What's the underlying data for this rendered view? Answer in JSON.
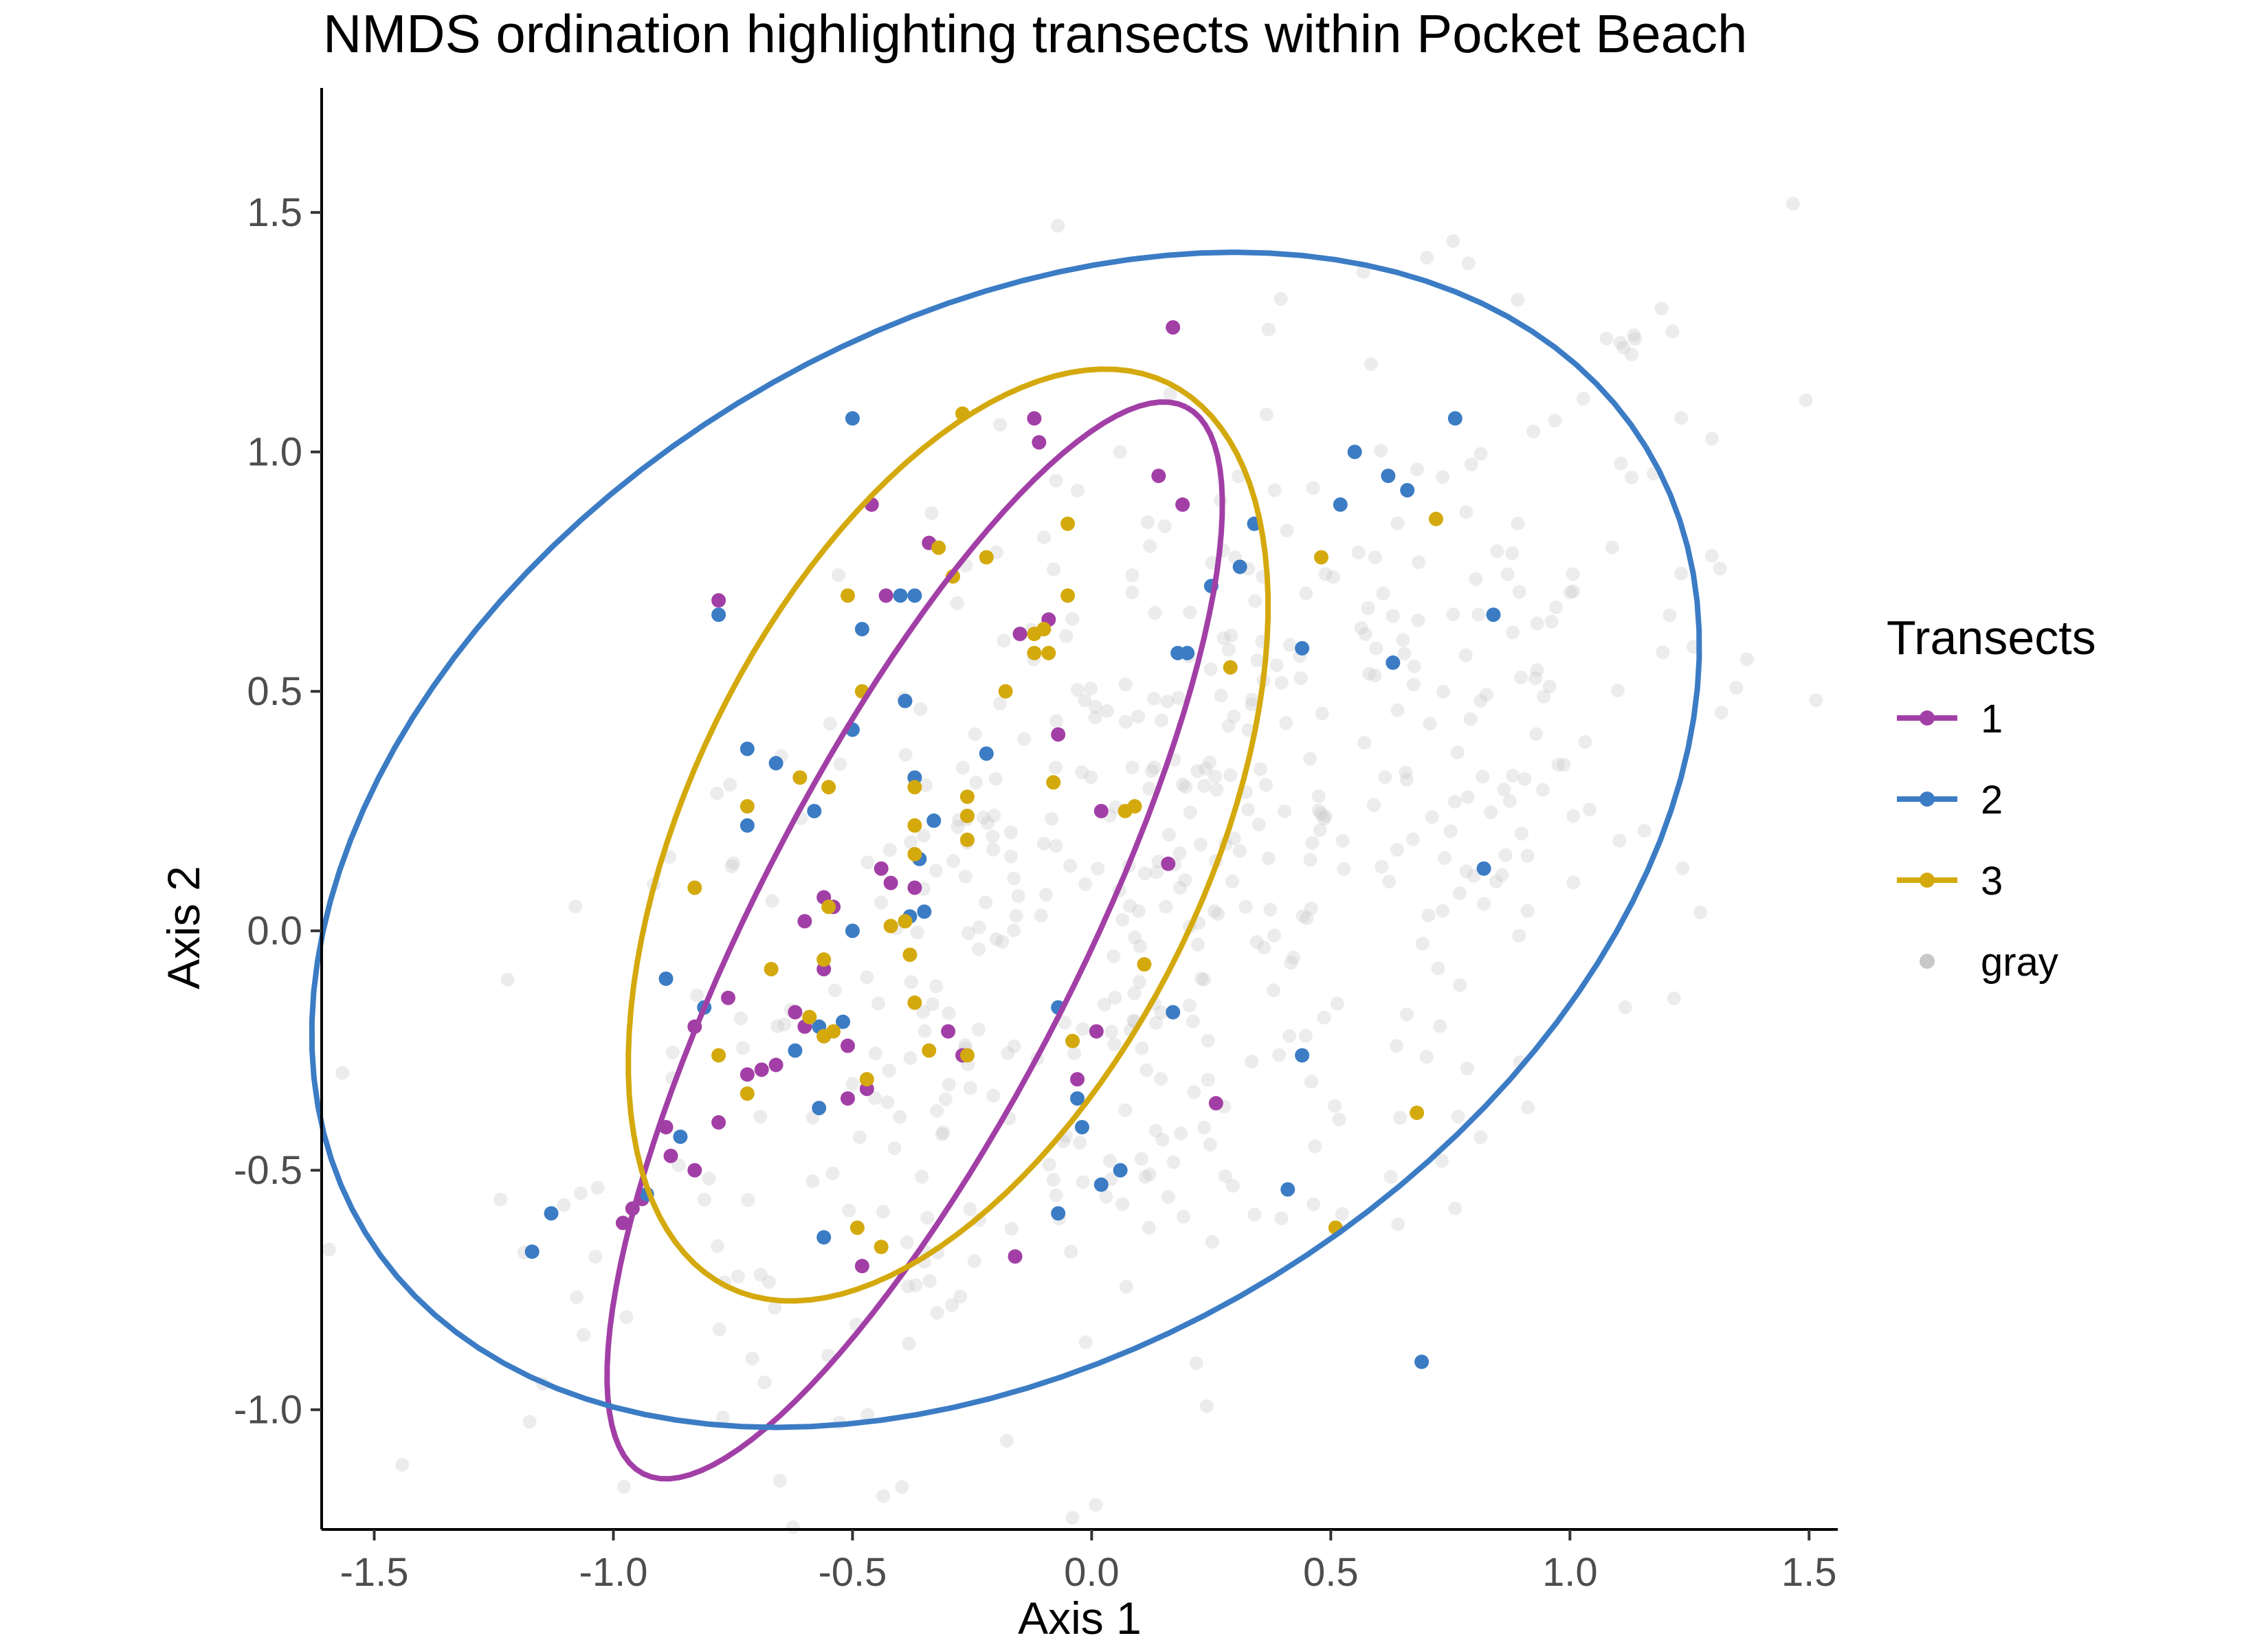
{
  "chart_data": {
    "type": "scatter",
    "title": "NMDS ordination highlighting transects within Pocket Beach",
    "xlabel": "Axis 1",
    "ylabel": "Axis 2",
    "xlim": [
      -1.61,
      1.56
    ],
    "ylim": [
      -1.25,
      1.76
    ],
    "xticks": [
      -1.5,
      -1.0,
      -0.5,
      0.0,
      0.5,
      1.0,
      1.5
    ],
    "xtick_labels": [
      "-1.5",
      "-1.0",
      "-0.5",
      "0.0",
      "0.5",
      "1.0",
      "1.5"
    ],
    "yticks": [
      -1.0,
      -0.5,
      0.0,
      0.5,
      1.0,
      1.5
    ],
    "ytick_labels": [
      "-1.0",
      "-0.5",
      "0.0",
      "0.5",
      "1.0",
      "1.5"
    ],
    "grid": false,
    "legend": {
      "title": "Transects",
      "position": "right",
      "entries": [
        "1",
        "2",
        "3",
        "gray"
      ]
    },
    "colors": {
      "1": "#A23FA6",
      "2": "#3B7CC4",
      "3": "#D4A90D",
      "gray": "#C8C8C8"
    },
    "background": {
      "name": "gray",
      "center": [
        0.2,
        0.1
      ],
      "spread": [
        0.62,
        0.55
      ],
      "correlation": 0.55,
      "count": 560,
      "opacity": 0.35
    },
    "series": [
      {
        "name": "1",
        "points": [
          [
            0.17,
            1.26
          ],
          [
            -0.12,
            1.07
          ],
          [
            -0.11,
            1.02
          ],
          [
            0.14,
            0.95
          ],
          [
            0.19,
            0.89
          ],
          [
            -0.46,
            0.89
          ],
          [
            -0.78,
            0.69
          ],
          [
            -0.43,
            0.7
          ],
          [
            -0.34,
            0.81
          ],
          [
            -0.15,
            0.62
          ],
          [
            -0.09,
            0.65
          ],
          [
            -0.07,
            0.41
          ],
          [
            0.02,
            0.25
          ],
          [
            0.16,
            0.14
          ],
          [
            -0.44,
            0.13
          ],
          [
            -0.42,
            0.1
          ],
          [
            -0.37,
            0.09
          ],
          [
            -0.56,
            0.07
          ],
          [
            -0.54,
            0.05
          ],
          [
            -0.6,
            0.02
          ],
          [
            -0.56,
            -0.08
          ],
          [
            -0.76,
            -0.14
          ],
          [
            -0.62,
            -0.17
          ],
          [
            -0.6,
            -0.2
          ],
          [
            -0.56,
            -0.22
          ],
          [
            -0.51,
            -0.24
          ],
          [
            -0.66,
            -0.28
          ],
          [
            -0.69,
            -0.29
          ],
          [
            -0.72,
            -0.3
          ],
          [
            -0.83,
            -0.2
          ],
          [
            -0.51,
            -0.35
          ],
          [
            -0.47,
            -0.33
          ],
          [
            -0.3,
            -0.21
          ],
          [
            -0.27,
            -0.26
          ],
          [
            -0.03,
            -0.31
          ],
          [
            0.01,
            -0.21
          ],
          [
            0.26,
            -0.36
          ],
          [
            -0.78,
            -0.4
          ],
          [
            -0.89,
            -0.41
          ],
          [
            -0.88,
            -0.47
          ],
          [
            -0.83,
            -0.5
          ],
          [
            -0.94,
            -0.56
          ],
          [
            -0.96,
            -0.58
          ],
          [
            -0.98,
            -0.61
          ],
          [
            -0.48,
            -0.7
          ],
          [
            -0.16,
            -0.68
          ]
        ]
      },
      {
        "name": "2",
        "points": [
          [
            -0.5,
            1.07
          ],
          [
            0.76,
            1.07
          ],
          [
            0.55,
            1.0
          ],
          [
            0.62,
            0.95
          ],
          [
            0.66,
            0.92
          ],
          [
            0.52,
            0.89
          ],
          [
            0.34,
            0.85
          ],
          [
            0.31,
            0.76
          ],
          [
            0.25,
            0.72
          ],
          [
            -0.78,
            0.66
          ],
          [
            -0.4,
            0.7
          ],
          [
            -0.37,
            0.7
          ],
          [
            -0.48,
            0.63
          ],
          [
            0.84,
            0.66
          ],
          [
            0.2,
            0.58
          ],
          [
            0.18,
            0.58
          ],
          [
            0.44,
            0.59
          ],
          [
            0.63,
            0.56
          ],
          [
            -0.39,
            0.48
          ],
          [
            -0.5,
            0.42
          ],
          [
            -0.72,
            0.38
          ],
          [
            -0.66,
            0.35
          ],
          [
            -0.37,
            0.32
          ],
          [
            -0.22,
            0.37
          ],
          [
            -0.58,
            0.25
          ],
          [
            -0.72,
            0.22
          ],
          [
            -0.33,
            0.23
          ],
          [
            -0.36,
            0.15
          ],
          [
            0.82,
            0.13
          ],
          [
            -0.38,
            0.03
          ],
          [
            -0.35,
            0.04
          ],
          [
            -0.5,
            0.0
          ],
          [
            -0.89,
            -0.1
          ],
          [
            -0.81,
            -0.16
          ],
          [
            -0.52,
            -0.19
          ],
          [
            -0.57,
            -0.2
          ],
          [
            -0.62,
            -0.25
          ],
          [
            -0.57,
            -0.37
          ],
          [
            -0.07,
            -0.16
          ],
          [
            0.17,
            -0.17
          ],
          [
            -0.03,
            -0.35
          ],
          [
            -0.02,
            -0.41
          ],
          [
            0.44,
            -0.26
          ],
          [
            0.06,
            -0.5
          ],
          [
            0.02,
            -0.53
          ],
          [
            -0.86,
            -0.43
          ],
          [
            -0.93,
            -0.55
          ],
          [
            -1.13,
            -0.59
          ],
          [
            -1.17,
            -0.67
          ],
          [
            -0.56,
            -0.64
          ],
          [
            -0.07,
            -0.59
          ],
          [
            0.41,
            -0.54
          ],
          [
            0.69,
            -0.9
          ]
        ]
      },
      {
        "name": "3",
        "points": [
          [
            -0.27,
            1.08
          ],
          [
            -0.22,
            0.78
          ],
          [
            -0.29,
            0.74
          ],
          [
            -0.32,
            0.8
          ],
          [
            -0.51,
            0.7
          ],
          [
            -0.05,
            0.85
          ],
          [
            -0.05,
            0.7
          ],
          [
            -0.12,
            0.62
          ],
          [
            -0.1,
            0.63
          ],
          [
            -0.09,
            0.58
          ],
          [
            -0.12,
            0.58
          ],
          [
            0.48,
            0.78
          ],
          [
            0.72,
            0.86
          ],
          [
            0.29,
            0.55
          ],
          [
            -0.18,
            0.5
          ],
          [
            -0.48,
            0.5
          ],
          [
            -0.37,
            0.3
          ],
          [
            -0.61,
            0.32
          ],
          [
            -0.55,
            0.3
          ],
          [
            -0.26,
            0.28
          ],
          [
            -0.72,
            0.26
          ],
          [
            -0.37,
            0.22
          ],
          [
            -0.26,
            0.24
          ],
          [
            -0.26,
            0.19
          ],
          [
            -0.37,
            0.16
          ],
          [
            -0.08,
            0.31
          ],
          [
            0.07,
            0.25
          ],
          [
            0.09,
            0.26
          ],
          [
            -0.83,
            0.09
          ],
          [
            -0.55,
            0.05
          ],
          [
            -0.39,
            0.02
          ],
          [
            -0.42,
            0.01
          ],
          [
            -0.38,
            -0.05
          ],
          [
            -0.56,
            -0.06
          ],
          [
            -0.67,
            -0.08
          ],
          [
            0.11,
            -0.07
          ],
          [
            -0.37,
            -0.15
          ],
          [
            -0.59,
            -0.18
          ],
          [
            -0.54,
            -0.21
          ],
          [
            -0.56,
            -0.22
          ],
          [
            -0.34,
            -0.25
          ],
          [
            -0.26,
            -0.26
          ],
          [
            -0.47,
            -0.31
          ],
          [
            -0.78,
            -0.26
          ],
          [
            -0.72,
            -0.34
          ],
          [
            -0.04,
            -0.23
          ],
          [
            0.68,
            -0.38
          ],
          [
            0.51,
            -0.62
          ],
          [
            -0.49,
            -0.62
          ],
          [
            -0.44,
            -0.66
          ]
        ]
      }
    ],
    "ellipses": [
      {
        "name": "1",
        "color": "#A23FA6",
        "center": [
          -0.37,
          -0.02
        ],
        "rx": 1.25,
        "ry": 0.34,
        "angle_deg": 63.0
      },
      {
        "name": "2",
        "color": "#3B7CC4",
        "center": [
          -0.18,
          0.19
        ],
        "rx": 1.57,
        "ry": 1.07,
        "angle_deg": 31.5
      },
      {
        "name": "3",
        "color": "#D4A90D",
        "center": [
          -0.3,
          0.2
        ],
        "rx": 1.05,
        "ry": 0.54,
        "angle_deg": 64.0
      }
    ]
  }
}
